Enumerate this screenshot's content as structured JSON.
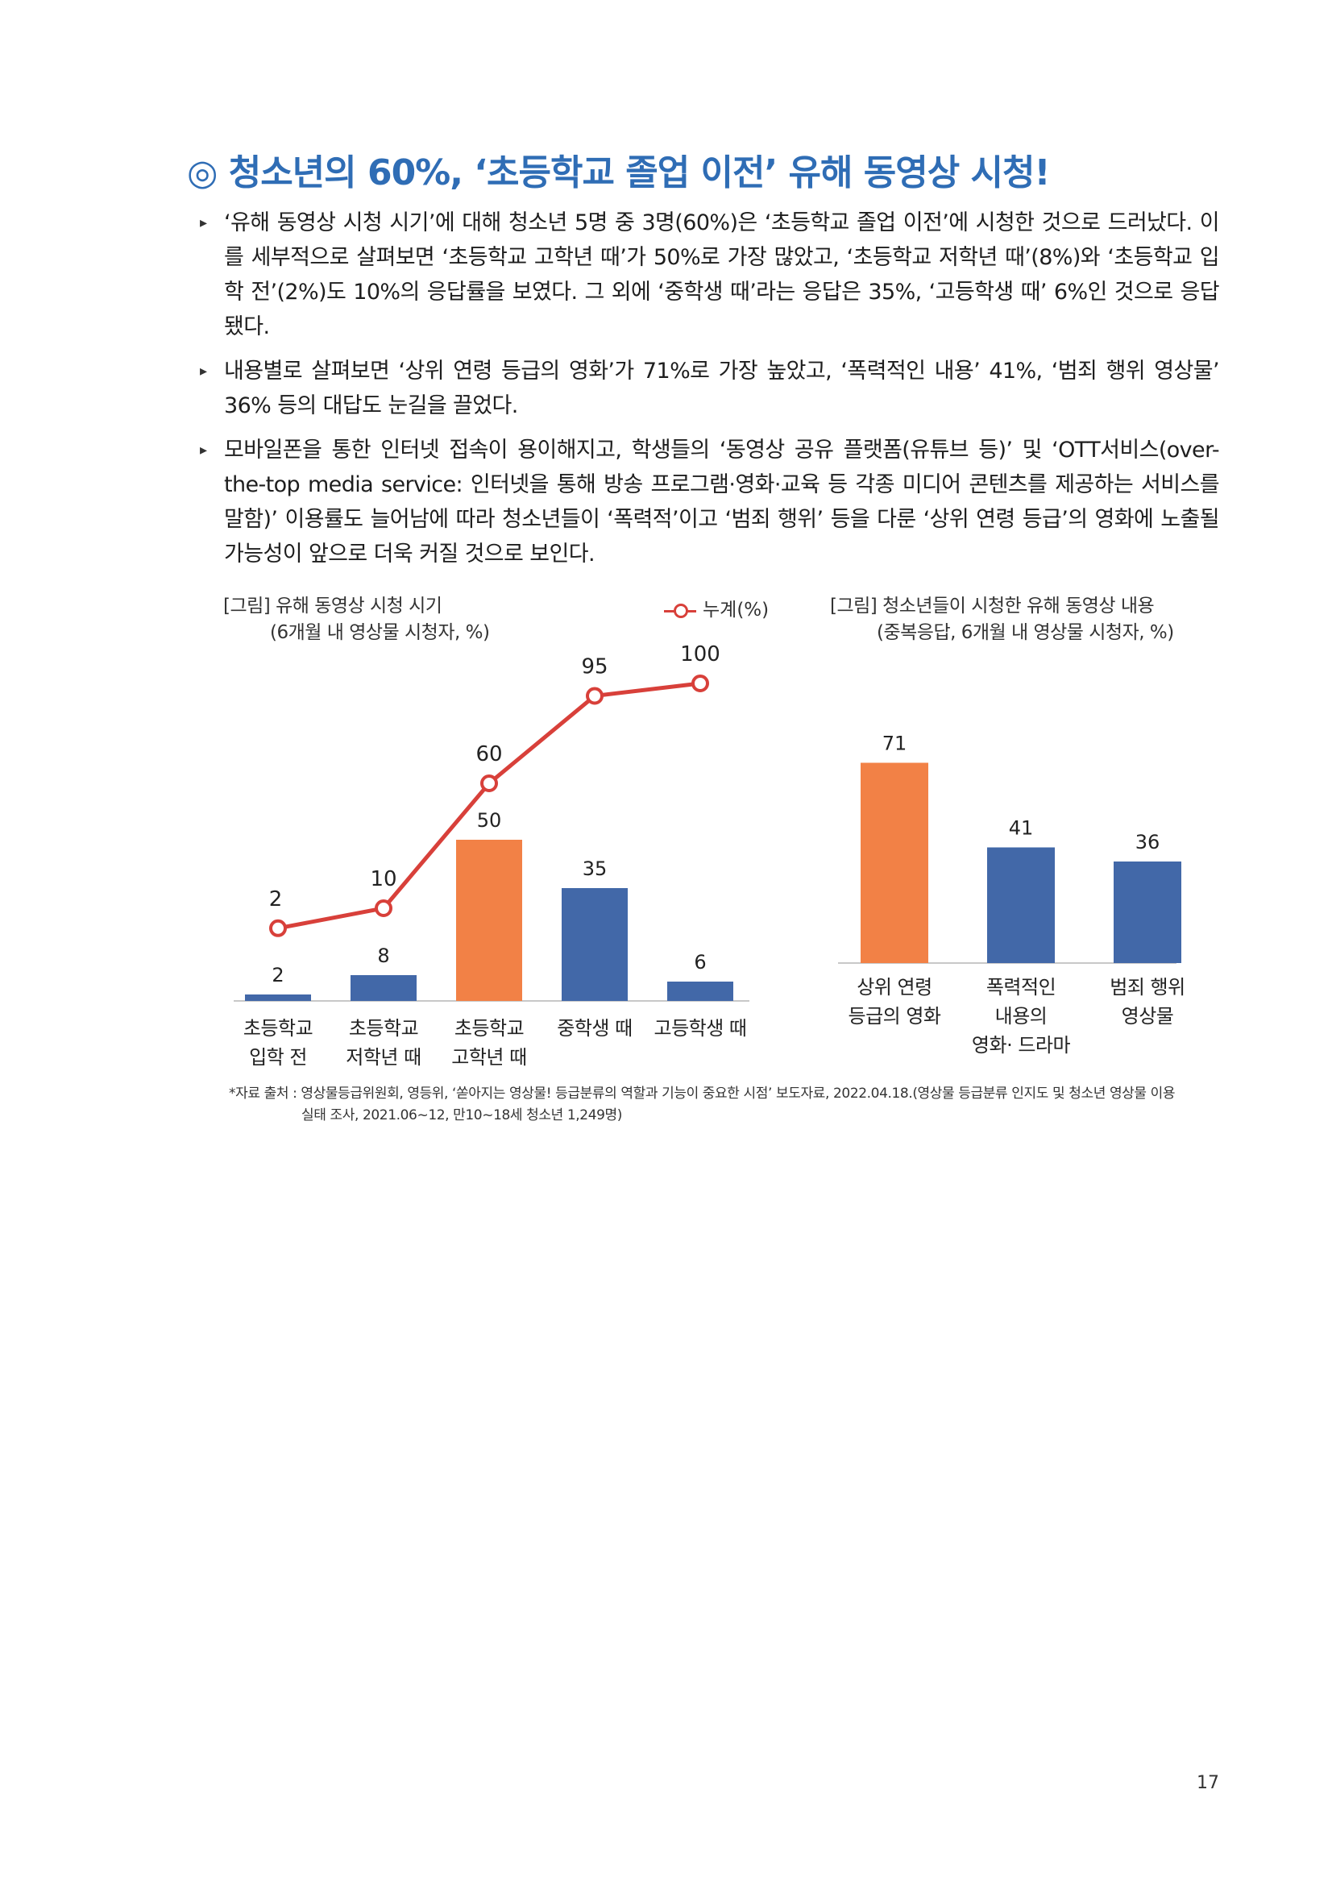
{
  "heading": "◎ 청소년의 60%, ‘초등학교 졸업 이전’ 유해 동영상 시청!",
  "bullets": [
    "‘유해 동영상 시청 시기’에 대해 청소년 5명 중 3명(60%)은 ‘초등학교 졸업 이전’에 시청한 것으로 드러났다. 이를 세부적으로 살펴보면 ‘초등학교 고학년 때’가 50%로 가장 많았고, ‘초등학교 저학년 때’(8%)와 ‘초등학교 입학 전’(2%)도 10%의 응답률을 보였다. 그 외에 ‘중학생 때’라는 응답은 35%, ‘고등학생 때’ 6%인 것으로 응답됐다.",
    "내용별로 살펴보면 ‘상위 연령 등급의 영화’가 71%로 가장 높았고, ‘폭력적인 내용’ 41%, ‘범죄 행위 영상물’ 36% 등의 대답도 눈길을 끌었다.",
    "모바일폰을 통한 인터넷 접속이 용이해지고, 학생들의 ‘동영상 공유 플랫폼(유튜브 등)’ 및 ‘OTT서비스(over-the-top media service: 인터넷을 통해 방송 프로그램·영화·교육 등 각종 미디어 콘텐츠를 제공하는 서비스를 말함)’ 이용률도 늘어남에 따라 청소년들이 ‘폭력적’이고 ‘범죄 행위’ 등을 다룬 ‘상위 연령 등급’의 영화에 노출될 가능성이 앞으로 더욱 커질 것으로 보인다."
  ],
  "chart_data": [
    {
      "type": "bar",
      "title": "[그림] 유해 동영상 시청 시기",
      "subtitle": "(6개월 내 영상물 시청자, %)",
      "categories": [
        [
          "초등학교",
          "입학 전"
        ],
        [
          "초등학교",
          "저학년 때"
        ],
        [
          "초등학교",
          "고학년 때"
        ],
        [
          "중학생 때"
        ],
        [
          "고등학생 때"
        ]
      ],
      "series": [
        {
          "values": [
            2,
            8,
            50,
            35,
            6
          ],
          "type": "bar"
        },
        {
          "name": "누계(%)",
          "values": [
            2,
            10,
            60,
            95,
            100
          ],
          "type": "line"
        }
      ],
      "highlight_index": 2,
      "legend": "top-right",
      "colors": {
        "bar": "#4268a8",
        "highlight": "#f28146",
        "line": "#d8403a"
      }
    },
    {
      "type": "bar",
      "title": "[그림] 청소년들이 시청한 유해 동영상 내용",
      "subtitle": "(중복응답, 6개월 내 영상물 시청자, %)",
      "categories": [
        [
          "상위 연령",
          "등급의 영화"
        ],
        [
          "폭력적인",
          "내용의",
          "영화· 드라마"
        ],
        [
          "범죄 행위",
          "영상물"
        ]
      ],
      "values": [
        71,
        41,
        36
      ],
      "highlight_index": 0,
      "colors": {
        "bar": "#4268a8",
        "highlight": "#f28146"
      }
    }
  ],
  "source": {
    "line1": "*자료 출처 : 영상물등급위원회, 영등위, ‘쏟아지는 영상물! 등급분류의 역할과 기능이 중요한 시점’ 보도자료, 2022.04.18.(영상물 등급분류 인지도 및 청소년 영상물 이용",
    "line2": "실태 조사, 2021.06~12, 만10~18세 청소년 1,249명)"
  },
  "page_number": "17"
}
